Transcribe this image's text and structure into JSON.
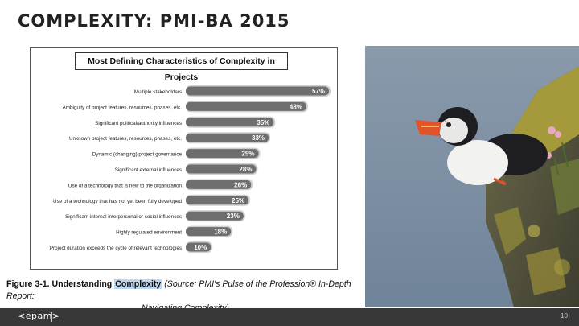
{
  "slide": {
    "title": "COMPLEXITY: PMI-BA 2015",
    "page_number": "10"
  },
  "footer": {
    "logo_text": "<epam>"
  },
  "caption": {
    "figure_label": "Figure 3-1. Understanding",
    "highlighted_word": "Complexity",
    "source_line1": " (Source: PMI's Pulse of the Profession® In-Depth Report:",
    "source_line2": "Navigating Complexity)"
  },
  "photo": {
    "subject": "puffin on mossy cliff edge"
  },
  "chart_data": {
    "type": "bar",
    "orientation": "horizontal",
    "title": "Most Defining Characteristics of Complexity in Projects",
    "categories": [
      "Multiple stakeholders",
      "Ambiguity of project features, resources, phases, etc.",
      "Significant political/authority influences",
      "Unknown project features, resources, phases, etc.",
      "Dynamic (changing) project governance",
      "Significant external influences",
      "Use of a technology that is new to the organization",
      "Use of a technology that has not yet been fully developed",
      "Significant internal interpersonal or social influences",
      "Highly regulated environment",
      "Project duration exceeds the cycle of relevant technologies"
    ],
    "values": [
      57,
      48,
      35,
      33,
      29,
      28,
      26,
      25,
      23,
      18,
      10
    ],
    "value_suffix": "%",
    "xlim": [
      0,
      57
    ],
    "bar_color": "#6e6e6e",
    "grid": false
  }
}
